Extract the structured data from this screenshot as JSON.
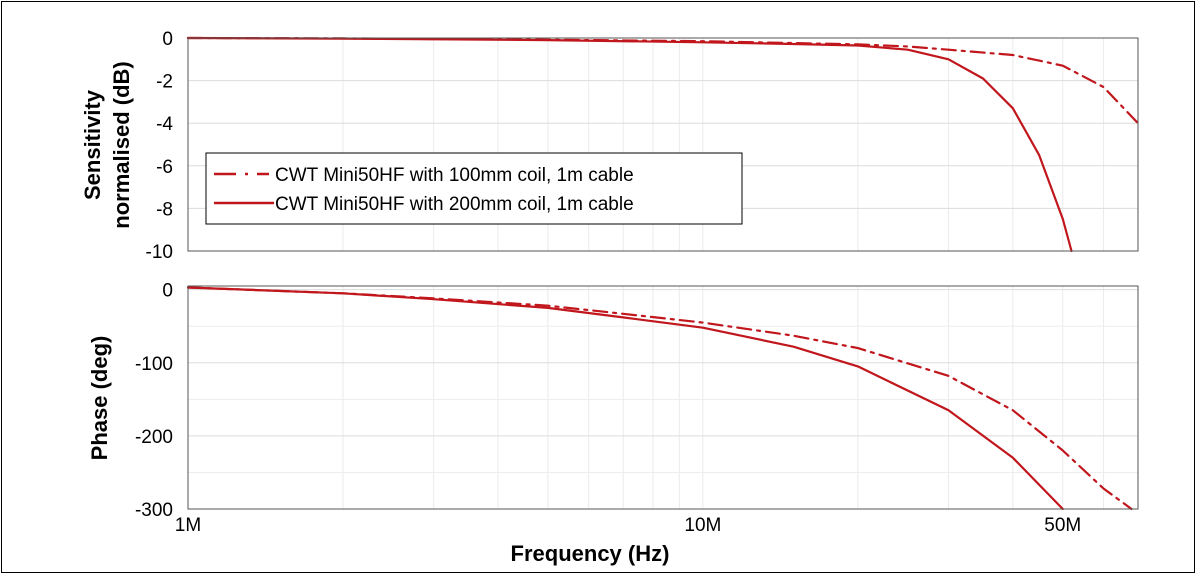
{
  "chart_data": [
    {
      "type": "line",
      "ylabel_lines": [
        "Sensitivity",
        "normalised (dB)"
      ],
      "xscale": "log",
      "xlim": [
        1000000,
        70000000
      ],
      "ylim": [
        -10,
        0
      ],
      "yticks": [
        0,
        -2,
        -4,
        -6,
        -8,
        -10
      ],
      "grid": true,
      "legend_position": "left",
      "series": [
        {
          "name": "CWT Mini50HF with 100mm coil, 1m cable",
          "style": "dash-dot",
          "color": "#c0161c",
          "x": [
            1000000,
            2000000,
            5000000,
            10000000,
            20000000,
            25000000,
            30000000,
            40000000,
            50000000,
            60000000,
            70000000
          ],
          "y": [
            0,
            -0.02,
            -0.08,
            -0.15,
            -0.3,
            -0.4,
            -0.55,
            -0.8,
            -1.3,
            -2.3,
            -4.0
          ]
        },
        {
          "name": "CWT Mini50HF with 200mm coil, 1m cable",
          "style": "solid",
          "color": "#c0161c",
          "x": [
            1000000,
            2000000,
            5000000,
            10000000,
            15000000,
            20000000,
            25000000,
            30000000,
            35000000,
            40000000,
            45000000,
            50000000,
            52000000
          ],
          "y": [
            0,
            -0.03,
            -0.1,
            -0.2,
            -0.28,
            -0.35,
            -0.55,
            -1.0,
            -1.9,
            -3.3,
            -5.5,
            -8.5,
            -10
          ]
        }
      ]
    },
    {
      "type": "line",
      "ylabel": "Phase (deg)",
      "xlabel": "Frequency (Hz)",
      "xscale": "log",
      "xlim": [
        1000000,
        70000000
      ],
      "ylim": [
        -300,
        5
      ],
      "yticks": [
        0,
        -100,
        -200,
        -300
      ],
      "xticks": [
        {
          "value": 1000000,
          "label": "1M"
        },
        {
          "value": 10000000,
          "label": "10M"
        },
        {
          "value": 50000000,
          "label": "50M"
        }
      ],
      "grid": true,
      "series": [
        {
          "name": "CWT Mini50HF with 100mm coil, 1m cable",
          "style": "dash-dot",
          "color": "#c0161c",
          "x": [
            1000000,
            2000000,
            3000000,
            5000000,
            7000000,
            10000000,
            15000000,
            20000000,
            30000000,
            40000000,
            50000000,
            60000000,
            68000000
          ],
          "y": [
            3,
            -5,
            -12,
            -22,
            -33,
            -45,
            -63,
            -80,
            -118,
            -165,
            -220,
            -272,
            -300
          ]
        },
        {
          "name": "CWT Mini50HF with 200mm coil, 1m cable",
          "style": "solid",
          "color": "#c0161c",
          "x": [
            1000000,
            2000000,
            3000000,
            5000000,
            7000000,
            10000000,
            15000000,
            20000000,
            30000000,
            40000000,
            50000000
          ],
          "y": [
            3,
            -5,
            -13,
            -25,
            -38,
            -52,
            -78,
            -105,
            -165,
            -230,
            -300
          ]
        }
      ]
    }
  ]
}
